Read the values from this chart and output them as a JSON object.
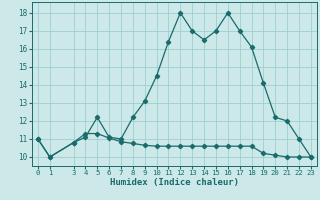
{
  "xlabel": "Humidex (Indice chaleur)",
  "x_ticks": [
    0,
    1,
    3,
    4,
    5,
    6,
    7,
    8,
    9,
    10,
    11,
    12,
    13,
    14,
    15,
    16,
    17,
    18,
    19,
    20,
    21,
    22,
    23
  ],
  "ylim": [
    9.5,
    18.6
  ],
  "xlim": [
    -0.5,
    23.5
  ],
  "yticks": [
    10,
    11,
    12,
    13,
    14,
    15,
    16,
    17,
    18
  ],
  "line1_x": [
    0,
    1,
    3,
    4,
    5,
    6,
    7,
    8,
    9,
    10,
    11,
    12,
    13,
    14,
    15,
    16,
    17,
    18,
    19,
    20,
    21,
    22,
    23
  ],
  "line1_y": [
    11.0,
    10.0,
    10.8,
    11.1,
    12.2,
    11.1,
    11.0,
    12.2,
    13.1,
    14.5,
    16.4,
    18.0,
    17.0,
    16.5,
    17.0,
    18.0,
    17.0,
    16.1,
    14.1,
    12.2,
    12.0,
    11.0,
    10.0
  ],
  "line2_x": [
    0,
    1,
    3,
    4,
    5,
    6,
    7,
    8,
    9,
    10,
    11,
    12,
    13,
    14,
    15,
    16,
    17,
    18,
    19,
    20,
    21,
    22,
    23
  ],
  "line2_y": [
    11.0,
    10.0,
    10.8,
    11.3,
    11.3,
    11.05,
    10.85,
    10.75,
    10.65,
    10.6,
    10.6,
    10.6,
    10.6,
    10.6,
    10.6,
    10.6,
    10.6,
    10.6,
    10.2,
    10.1,
    10.0,
    10.0,
    10.0
  ],
  "line_color": "#1a6b6b",
  "bg_color": "#cce8e8",
  "grid_color": "#9ecece"
}
